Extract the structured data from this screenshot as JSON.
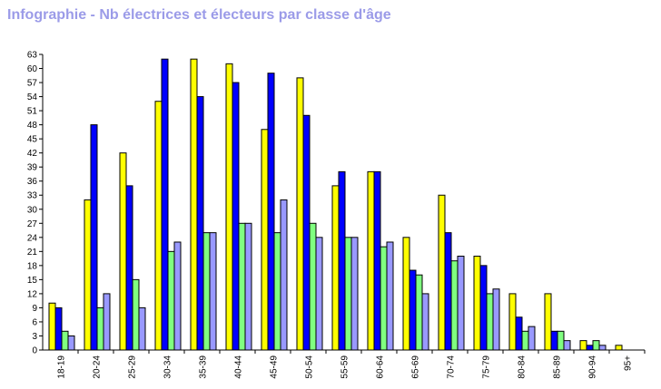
{
  "chart_data": {
    "type": "bar",
    "title": "Infographie - Nb électrices et électeurs par classe d'âge",
    "xlabel": "",
    "ylabel": "",
    "ylim": [
      0,
      63
    ],
    "yticks": [
      0,
      3,
      6,
      9,
      12,
      15,
      18,
      21,
      24,
      27,
      30,
      33,
      36,
      39,
      42,
      45,
      48,
      51,
      54,
      57,
      60,
      63
    ],
    "categories": [
      "18-19",
      "20-24",
      "25-29",
      "30-34",
      "35-39",
      "40-44",
      "45-49",
      "50-54",
      "55-59",
      "60-64",
      "65-69",
      "70-74",
      "75-79",
      "80-84",
      "85-89",
      "90-94",
      "95+"
    ],
    "grid": false,
    "legend": "none",
    "series": [
      {
        "color": "#ffff00",
        "values": [
          10,
          32,
          42,
          53,
          62,
          61,
          47,
          58,
          35,
          38,
          24,
          33,
          20,
          12,
          12,
          2,
          1
        ]
      },
      {
        "color": "#0000ff",
        "values": [
          9,
          48,
          35,
          62,
          54,
          57,
          59,
          50,
          38,
          38,
          17,
          25,
          18,
          7,
          4,
          1,
          0
        ]
      },
      {
        "color": "#80ff80",
        "values": [
          4,
          9,
          15,
          21,
          25,
          27,
          25,
          27,
          24,
          22,
          16,
          19,
          12,
          4,
          4,
          2,
          0
        ]
      },
      {
        "color": "#9999ff",
        "values": [
          3,
          12,
          9,
          23,
          25,
          27,
          32,
          24,
          24,
          23,
          12,
          20,
          13,
          5,
          2,
          1,
          0
        ]
      }
    ]
  }
}
